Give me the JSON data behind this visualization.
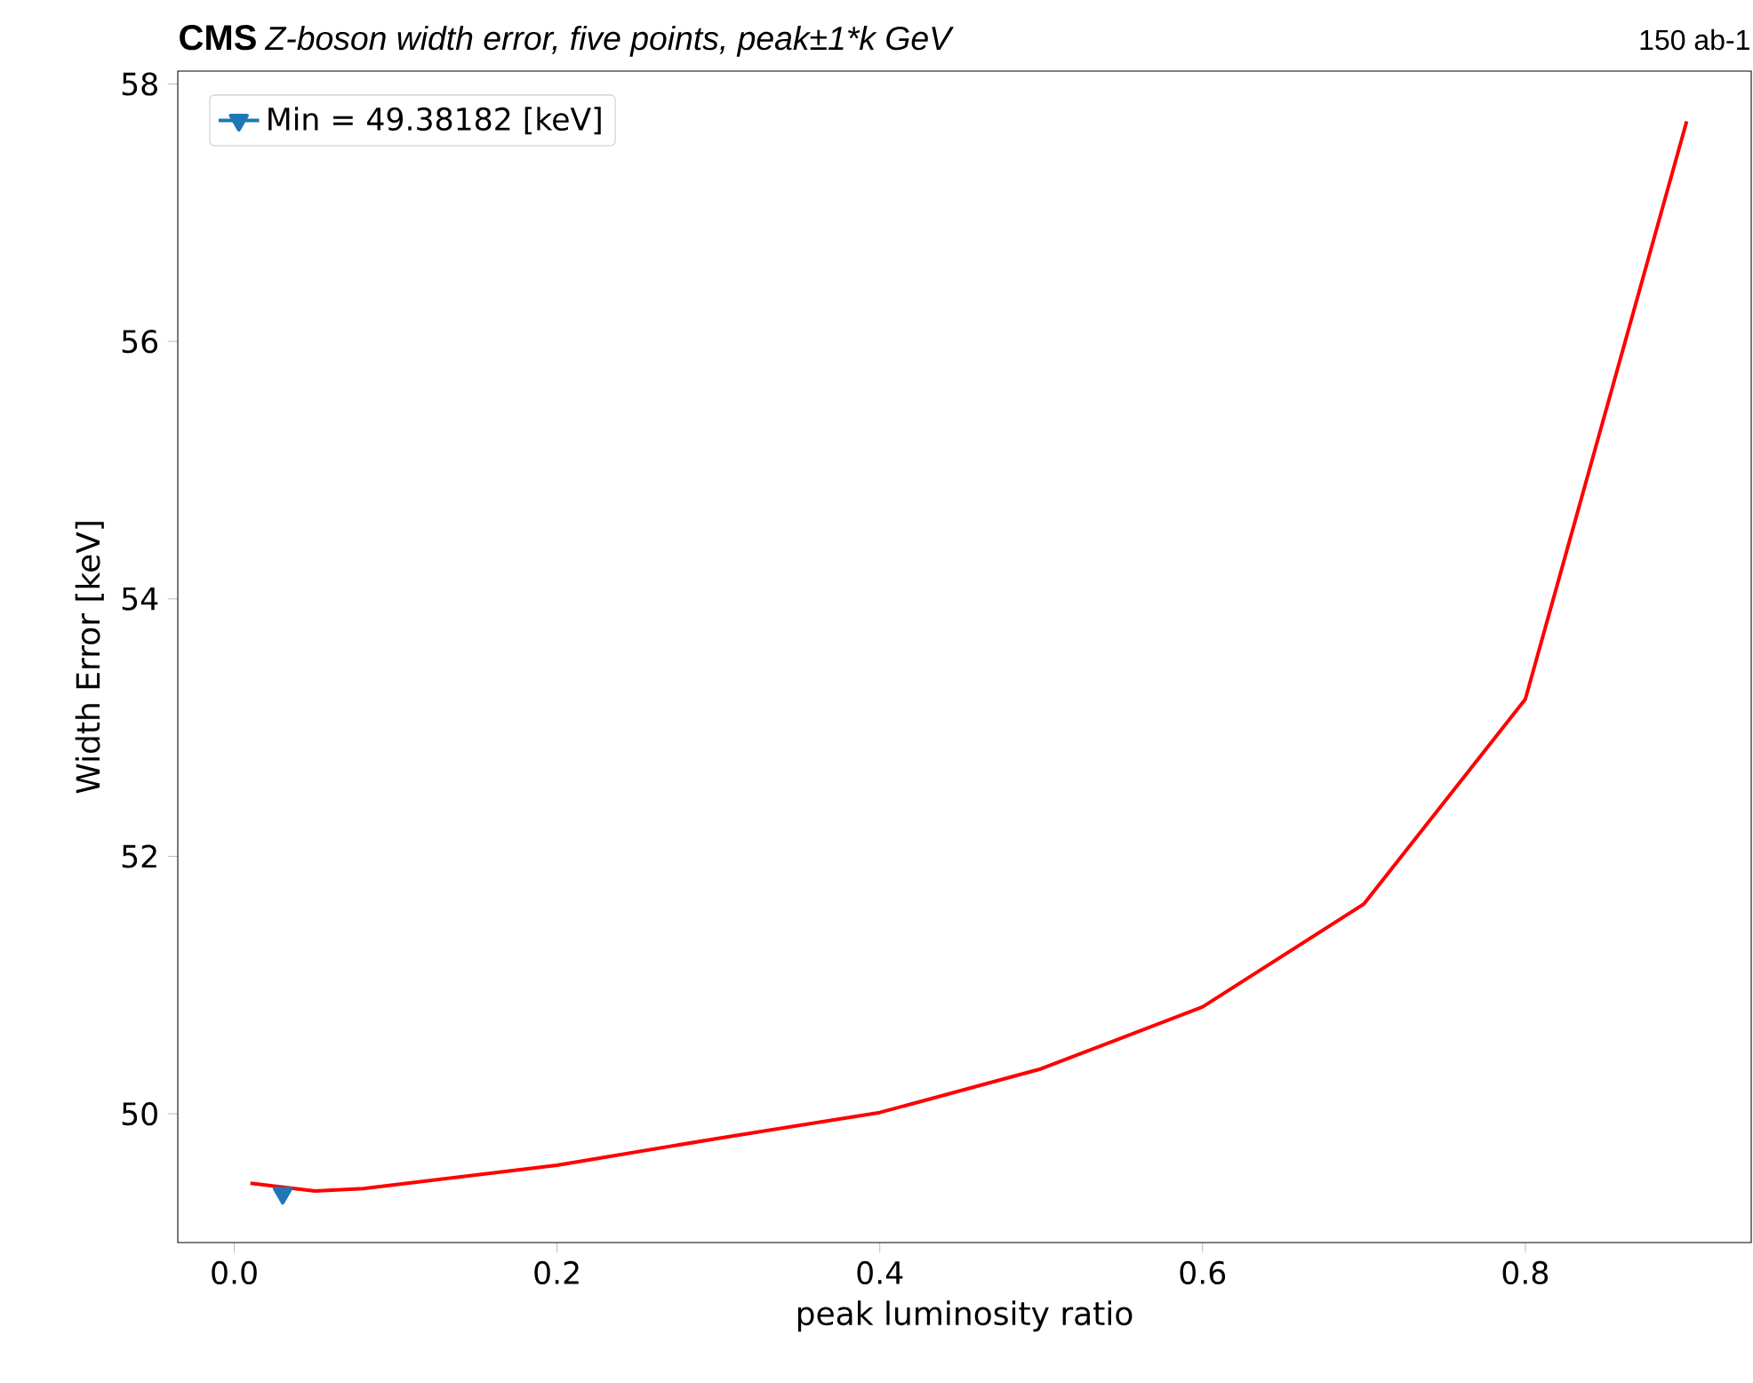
{
  "chart_data": {
    "type": "line",
    "title": "CMS",
    "subtitle": "Z-boson width error, five points, peak±1*k GeV",
    "annotations": [
      "150 ab-1"
    ],
    "xlabel": "peak luminosity ratio",
    "ylabel": "Width Error [keV]",
    "series": [
      {
        "color": "#ff0000",
        "x": [
          0.01,
          0.05,
          0.08,
          0.2,
          0.3,
          0.4,
          0.5,
          0.6,
          0.7,
          0.8,
          0.9
        ],
        "values": [
          49.46,
          49.4,
          49.42,
          49.6,
          49.81,
          50.01,
          50.35,
          50.83,
          51.63,
          53.22,
          57.71
        ],
        "marker": "none"
      },
      {
        "name": "Min = 49.38182 [keV]",
        "color": "#1f77b4",
        "x": [
          0.03
        ],
        "values": [
          49.38182
        ],
        "marker": "triangle"
      }
    ],
    "xlim": [
      -0.035,
      0.94
    ],
    "ylim": [
      49.0,
      58.1
    ],
    "xticks": [
      {
        "value": 0.0,
        "label": "0.0"
      },
      0.2,
      0.4,
      0.6,
      0.8
    ],
    "yticks": [
      50,
      52,
      54,
      56,
      58
    ],
    "grid": false,
    "legend": "top left",
    "line_style": "solid"
  }
}
